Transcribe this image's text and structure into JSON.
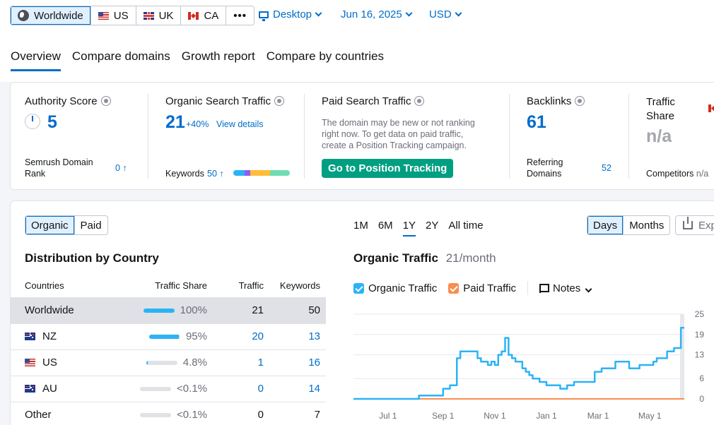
{
  "location_segments": [
    {
      "label": "Worldwide",
      "icon": "globe-icon",
      "active": true
    },
    {
      "label": "US",
      "icon": "us-flag-icon"
    },
    {
      "label": "UK",
      "icon": "uk-flag-icon"
    },
    {
      "label": "CA",
      "icon": "ca-flag-icon"
    },
    {
      "label": "•••",
      "icon": "more-icon"
    }
  ],
  "filters": {
    "device": "Desktop",
    "date": "Jun 16, 2025",
    "currency": "USD"
  },
  "tabs": [
    "Overview",
    "Compare domains",
    "Growth report",
    "Compare by countries"
  ],
  "metrics": {
    "authority": {
      "title": "Authority Score",
      "value": "5",
      "sub_label": "Semrush Domain Rank",
      "sub_value": "0",
      "sub_arrow": "↑"
    },
    "organic": {
      "title": "Organic Search Traffic",
      "value": "21",
      "change": "+40%",
      "link": "View details",
      "kw_label": "Keywords",
      "kw_value": "50",
      "kw_arrow": "↑"
    },
    "paid": {
      "title": "Paid Search Traffic",
      "desc": "The domain may be new or not ranking right now. To get data on paid traffic, create a Position Tracking campaign.",
      "button": "Go to Position Tracking"
    },
    "backlinks": {
      "title": "Backlinks",
      "value": "61",
      "sub_label": "Referring Domains",
      "sub_value": "52"
    },
    "traffic_share": {
      "title": "Traffic Share",
      "value": "n/a",
      "sub_label": "Competitors",
      "sub_value": "n/a"
    }
  },
  "kw_bar_colors": [
    "#2bb3f5",
    "#8e5cf0",
    "#ffbd3a",
    "#6fdcb2"
  ],
  "dist": {
    "toggle": [
      "Organic",
      "Paid"
    ],
    "title": "Distribution by Country",
    "headers": [
      "Countries",
      "Traffic Share",
      "Traffic",
      "Keywords"
    ],
    "rows": [
      {
        "country": "Worldwide",
        "flag": "",
        "share": "100%",
        "share_frac": 1.0,
        "traffic": "21",
        "keywords": "50"
      },
      {
        "country": "NZ",
        "flag": "nz",
        "share": "95%",
        "share_frac": 0.95,
        "traffic": "20",
        "keywords": "13"
      },
      {
        "country": "US",
        "flag": "us",
        "share": "4.8%",
        "share_frac": 0.048,
        "traffic": "1",
        "keywords": "16"
      },
      {
        "country": "AU",
        "flag": "au",
        "share": "<0.1%",
        "share_frac": 0.0,
        "traffic": "0",
        "keywords": "14"
      },
      {
        "country": "Other",
        "flag": "",
        "share": "<0.1%",
        "share_frac": 0.0,
        "traffic": "0",
        "keywords": "7"
      }
    ]
  },
  "periods": [
    "1M",
    "6M",
    "1Y",
    "2Y",
    "All time"
  ],
  "granularity": [
    "Days",
    "Months"
  ],
  "export_label": "Exp",
  "chart_title": "Organic Traffic",
  "chart_value": "21/month",
  "legend": {
    "organic": "Organic Traffic",
    "paid": "Paid Traffic",
    "notes": "Notes"
  },
  "colors": {
    "accent": "#006dca",
    "organic": "#2bb3f5",
    "paid": "#f98e4f",
    "green": "#009f81"
  },
  "chart_data": {
    "type": "line",
    "xlabels": [
      "Jul 1",
      "Sep 1",
      "Nov 1",
      "Jan 1",
      "Mar 1",
      "May 1"
    ],
    "yticks": [
      0,
      6,
      13,
      19,
      25
    ],
    "ylim": [
      0,
      25
    ],
    "series": [
      {
        "name": "Organic Traffic",
        "x": [
          0,
          16,
          17,
          19,
          24,
          26,
          28,
          30,
          31,
          35,
          36,
          37,
          38,
          39,
          40,
          41,
          42,
          43,
          44,
          45,
          46,
          47,
          48,
          49,
          50,
          51,
          52,
          53,
          54,
          55,
          56,
          58,
          60,
          62,
          64,
          66,
          68,
          70,
          72,
          74,
          76,
          78,
          80,
          83,
          85,
          87,
          88,
          91,
          93,
          95,
          96
        ],
        "y": [
          0,
          0,
          0,
          1,
          1,
          3,
          4,
          12,
          14,
          14,
          12,
          11,
          11,
          10,
          11,
          10,
          13,
          14,
          18,
          13,
          12,
          11,
          11,
          9,
          8,
          7,
          6,
          6,
          5,
          5,
          4,
          4,
          3,
          4,
          5,
          5,
          5,
          8,
          9,
          9,
          11,
          11,
          9,
          10,
          10,
          11,
          12,
          14,
          15,
          21,
          21
        ]
      },
      {
        "name": "Paid Traffic",
        "x": [
          0,
          96
        ],
        "y": [
          0,
          0
        ]
      }
    ]
  }
}
